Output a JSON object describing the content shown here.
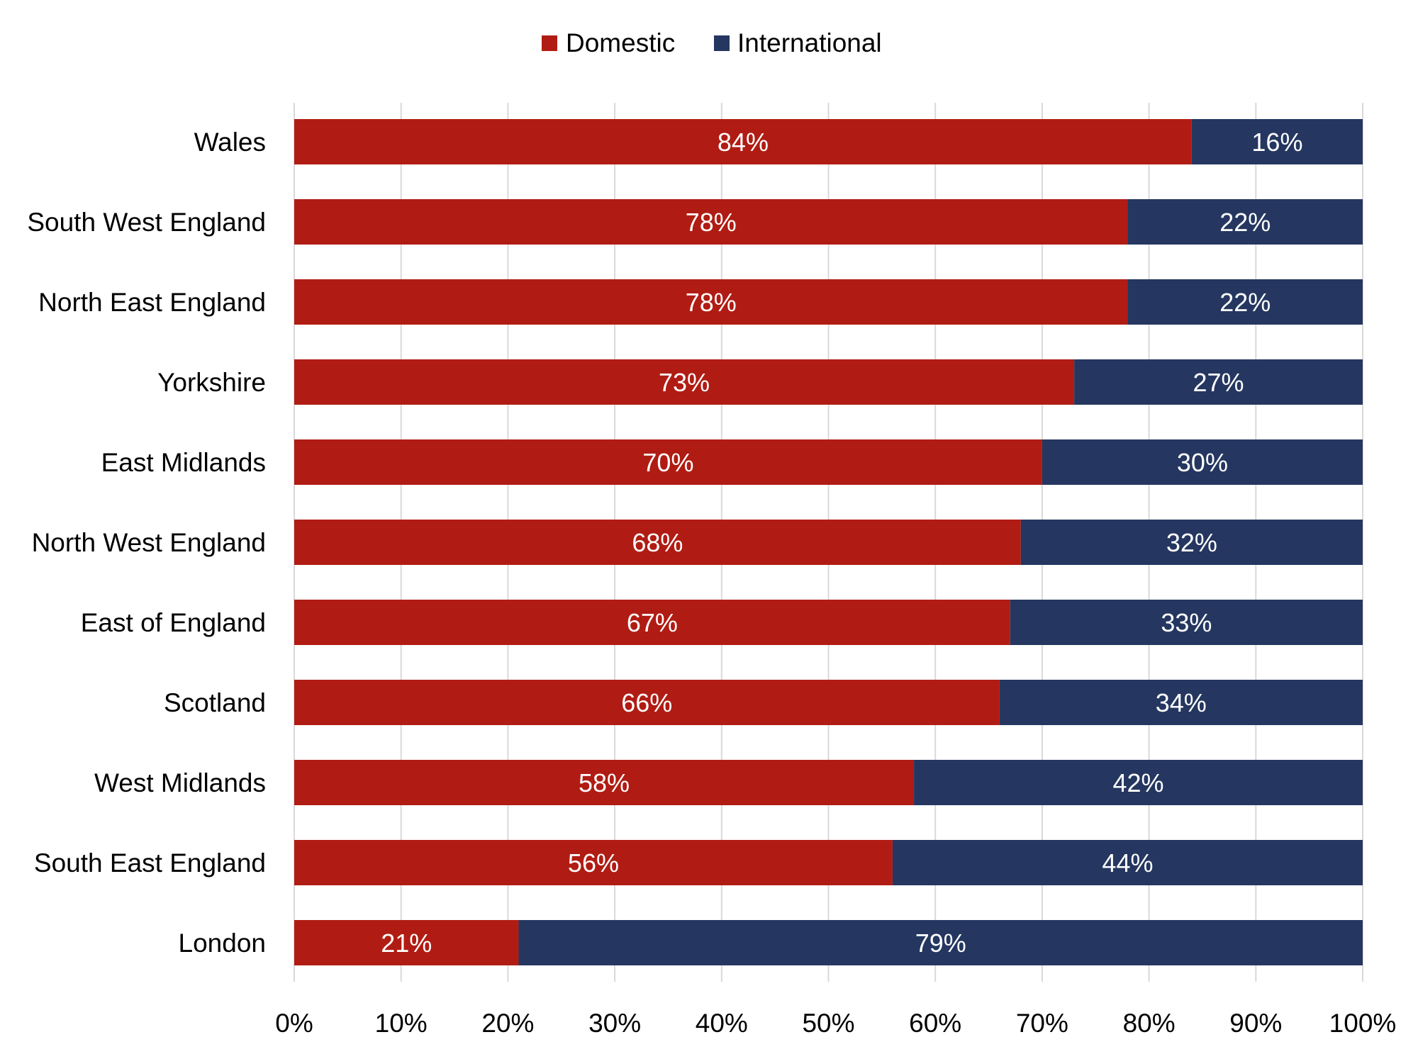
{
  "chart_data": {
    "type": "bar",
    "orientation": "horizontal",
    "stacked": true,
    "categories": [
      "Wales",
      "South West England",
      "North East England",
      "Yorkshire",
      "East Midlands",
      "North West England",
      "East of England",
      "Scotland",
      "West Midlands",
      "South East England",
      "London"
    ],
    "series": [
      {
        "name": "Domestic",
        "color": "#B01C13",
        "values": [
          84,
          78,
          78,
          73,
          70,
          68,
          67,
          66,
          58,
          56,
          21
        ],
        "labels": [
          "84%",
          "78%",
          "78%",
          "73%",
          "70%",
          "68%",
          "67%",
          "66%",
          "58%",
          "56%",
          "21%"
        ]
      },
      {
        "name": "International",
        "color": "#253760",
        "values": [
          16,
          22,
          22,
          27,
          30,
          32,
          33,
          34,
          42,
          44,
          79
        ],
        "labels": [
          "16%",
          "22%",
          "22%",
          "27%",
          "30%",
          "32%",
          "33%",
          "34%",
          "42%",
          "44%",
          "79%"
        ]
      }
    ],
    "xlim": [
      0,
      100
    ],
    "xticks": [
      "0%",
      "10%",
      "20%",
      "30%",
      "40%",
      "50%",
      "60%",
      "70%",
      "80%",
      "90%",
      "100%"
    ],
    "xlabel": "",
    "ylabel": "",
    "title": "",
    "grid": "vertical",
    "legend": "top-center"
  }
}
